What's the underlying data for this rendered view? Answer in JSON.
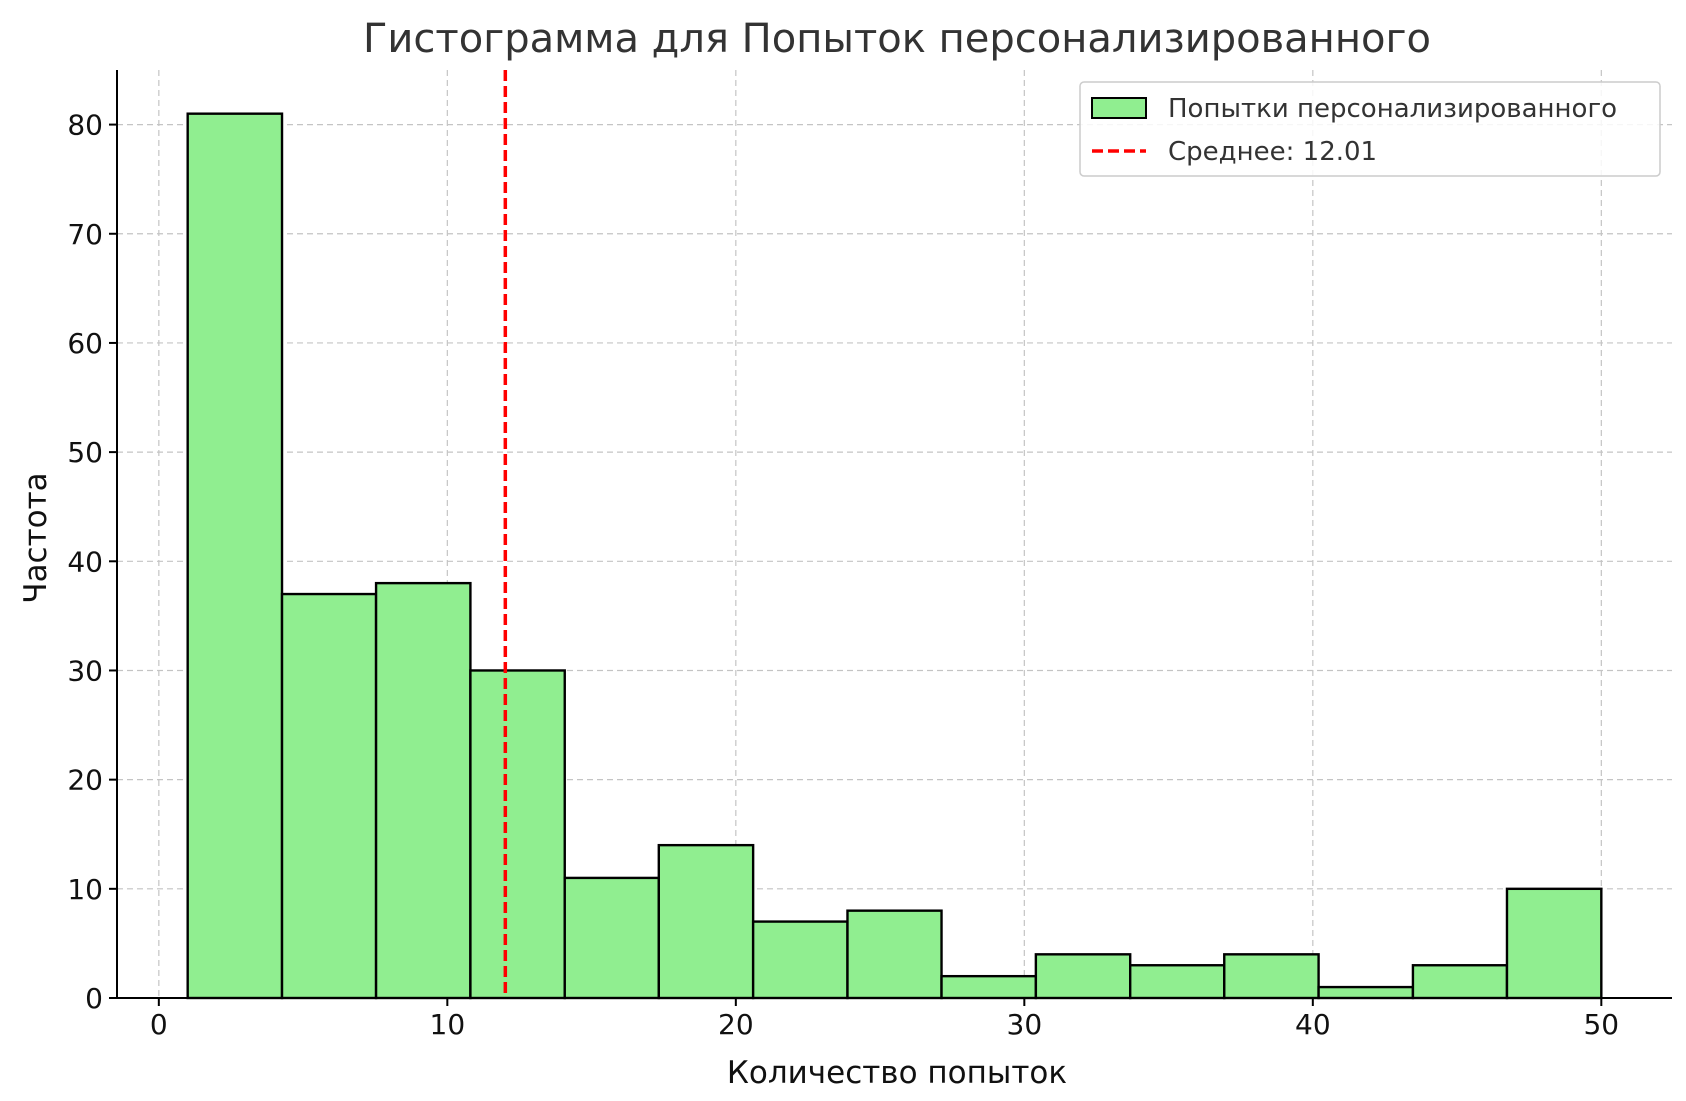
{
  "chart_data": {
    "type": "bar",
    "title": "Гистограмма для Попыток персонализированного",
    "xlabel": "Количество попыток",
    "ylabel": "Частота",
    "xlim": [
      -1.45,
      52.45
    ],
    "ylim": [
      0,
      85
    ],
    "x_ticks": [
      0,
      10,
      20,
      30,
      40,
      50
    ],
    "y_ticks": [
      0,
      10,
      20,
      30,
      40,
      50,
      60,
      70,
      80
    ],
    "grid": true,
    "bin_edges": [
      1.0,
      4.27,
      7.53,
      10.8,
      14.07,
      17.33,
      20.6,
      23.87,
      27.13,
      30.4,
      33.67,
      36.93,
      40.2,
      43.47,
      46.73,
      50.0
    ],
    "values": [
      81,
      37,
      38,
      30,
      11,
      14,
      7,
      8,
      2,
      4,
      3,
      4,
      1,
      3,
      10
    ],
    "bar_color": "#90ee90",
    "mean": 12.01,
    "mean_color": "#ff0000",
    "legend_position": "top-right",
    "legend": [
      {
        "label": "Попытки персонализированного",
        "kind": "patch",
        "color": "#90ee90"
      },
      {
        "label": "Среднее: 12.01",
        "kind": "dashed-line",
        "color": "#ff0000"
      }
    ]
  }
}
